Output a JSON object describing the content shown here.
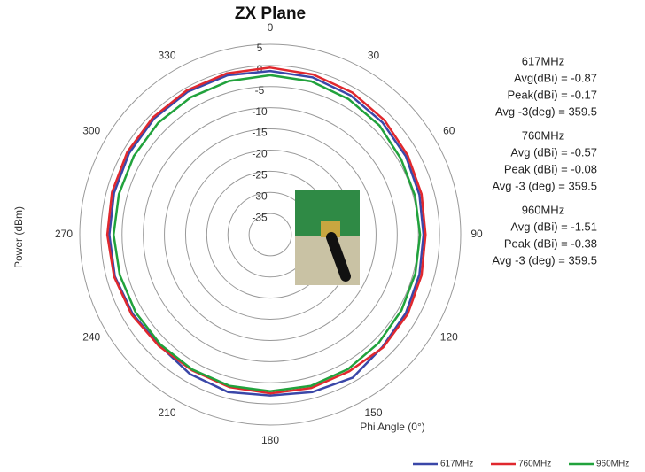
{
  "chart_data": {
    "type": "polar",
    "title": "ZX Plane",
    "y_label": "Power (dBm)",
    "x_label": "Phi Angle (0°)",
    "theta": [
      0,
      15,
      30,
      45,
      60,
      75,
      90,
      105,
      120,
      135,
      150,
      165,
      180,
      195,
      210,
      225,
      240,
      255,
      270,
      285,
      300,
      315,
      330,
      345
    ],
    "thetaticks": [
      0,
      30,
      60,
      90,
      120,
      150,
      180,
      210,
      240,
      270,
      300,
      330
    ],
    "rlim": [
      -40,
      5
    ],
    "rticks": [
      5,
      0,
      -5,
      -10,
      -15,
      -20,
      -25,
      -30,
      -35
    ],
    "series": [
      {
        "name": "617MHz",
        "color": "#3a47a8",
        "values": [
          -1.3,
          -1.5,
          -2,
          -2.5,
          -3,
          -3.5,
          -3.8,
          -3.5,
          -3,
          -2.5,
          -1,
          -1.5,
          -2,
          -1.5,
          -2,
          -3,
          -2.5,
          -2,
          -2,
          -1.8,
          -1.5,
          -1.2,
          -1,
          -1
        ]
      },
      {
        "name": "760MHz",
        "color": "#e0282e",
        "values": [
          -0.5,
          -0.8,
          -1.2,
          -1.8,
          -2.5,
          -3,
          -3.3,
          -3,
          -2.5,
          -2.3,
          -2.7,
          -2.5,
          -2.5,
          -2.7,
          -3,
          -2.8,
          -2.2,
          -1.8,
          -1.5,
          -1.3,
          -1,
          -0.8,
          -0.6,
          -0.5
        ]
      },
      {
        "name": "960MHz",
        "color": "#21a23c",
        "values": [
          -2.3,
          -2.5,
          -3,
          -3.5,
          -4.3,
          -4.6,
          -4.6,
          -4.5,
          -4.2,
          -3.8,
          -3.3,
          -3,
          -3,
          -3,
          -3.2,
          -3.3,
          -3.3,
          -3.2,
          -3,
          -3,
          -2.8,
          -2.6,
          -2.5,
          -2.4
        ]
      }
    ],
    "annotations": [
      {
        "heading": "617MHz",
        "lines": [
          "Avg(dBi) = -0.87",
          "Peak(dBi) = -0.17",
          "Avg -3(deg) = 359.5"
        ]
      },
      {
        "heading": "760MHz",
        "lines": [
          "Avg (dBi) =  -0.57",
          "Peak (dBi) =  -0.08",
          "Avg -3 (deg) =  359.5"
        ]
      },
      {
        "heading": "960MHz",
        "lines": [
          "Avg (dBi) =  -1.51",
          "Peak (dBi) = -0.38",
          "Avg -3 (deg) = 359.5"
        ]
      }
    ]
  }
}
